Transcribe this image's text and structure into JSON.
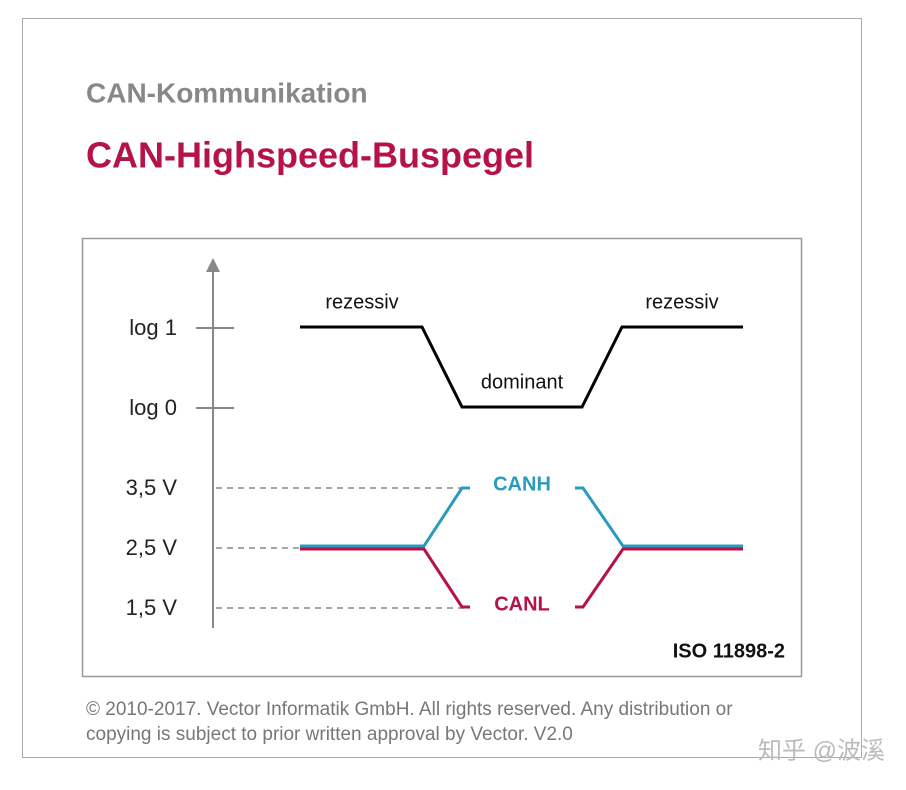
{
  "header": {
    "subtitle": "CAN-Kommunikation",
    "title": "CAN-Highspeed-Buspegel"
  },
  "diagram": {
    "axis_labels": [
      "log 1",
      "log 0",
      "3,5 V",
      "2,5 V",
      "1,5 V"
    ],
    "logic_labels": [
      "rezessiv",
      "dominant",
      "rezessiv"
    ],
    "signals": [
      "CANH",
      "CANL"
    ],
    "standard": "ISO 11898-2"
  },
  "footer": {
    "copyright": [
      "© 2010-2017. Vector Informatik GmbH. All rights reserved. Any distribution or",
      "copying is subject to prior written approval by Vector. V2.0"
    ],
    "watermark": "知乎 @波溪"
  }
}
